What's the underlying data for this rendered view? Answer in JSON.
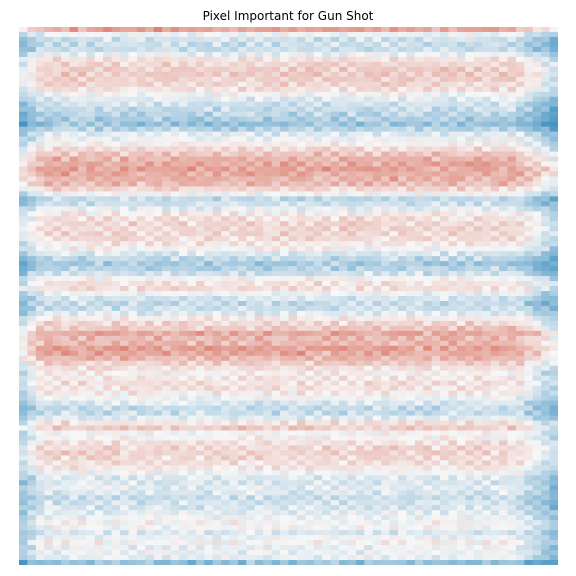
{
  "chart_data": {
    "type": "heatmap",
    "title": "Pixel Important for Gun Shot",
    "xlabel": "",
    "ylabel": "",
    "axes_visible": false,
    "colormap": "RdBu diverging (negative = blue, positive = red)",
    "value_range": [
      -1,
      1
    ],
    "column_pattern": {
      "description": "horizontally banded attribution map; within each row a checker-like texture, stronger blue along left and right edges",
      "edge_boost_left": 0.35,
      "edge_boost_right": 0.45
    },
    "rows": [
      {
        "position": 0.0,
        "value": 0.55
      },
      {
        "position": 0.005,
        "value": 0.1
      },
      {
        "position": 0.015,
        "value": -0.2
      },
      {
        "position": 0.035,
        "value": -0.3
      },
      {
        "position": 0.06,
        "value": 0.22
      },
      {
        "position": 0.085,
        "value": 0.3
      },
      {
        "position": 0.11,
        "value": 0.18
      },
      {
        "position": 0.135,
        "value": -0.2
      },
      {
        "position": 0.16,
        "value": -0.35
      },
      {
        "position": 0.18,
        "value": -0.55
      },
      {
        "position": 0.195,
        "value": -0.15
      },
      {
        "position": 0.215,
        "value": 0.05
      },
      {
        "position": 0.23,
        "value": 0.3
      },
      {
        "position": 0.245,
        "value": 0.45
      },
      {
        "position": 0.26,
        "value": 0.55
      },
      {
        "position": 0.275,
        "value": 0.5
      },
      {
        "position": 0.29,
        "value": 0.4
      },
      {
        "position": 0.305,
        "value": 0.1
      },
      {
        "position": 0.32,
        "value": -0.35
      },
      {
        "position": 0.335,
        "value": -0.1
      },
      {
        "position": 0.35,
        "value": 0.15
      },
      {
        "position": 0.37,
        "value": 0.22
      },
      {
        "position": 0.39,
        "value": 0.2
      },
      {
        "position": 0.41,
        "value": 0.05
      },
      {
        "position": 0.425,
        "value": -0.25
      },
      {
        "position": 0.44,
        "value": -0.45
      },
      {
        "position": 0.455,
        "value": -0.3
      },
      {
        "position": 0.47,
        "value": 0.1
      },
      {
        "position": 0.485,
        "value": 0.18
      },
      {
        "position": 0.5,
        "value": -0.15
      },
      {
        "position": 0.515,
        "value": -0.3
      },
      {
        "position": 0.53,
        "value": -0.2
      },
      {
        "position": 0.545,
        "value": 0.15
      },
      {
        "position": 0.56,
        "value": 0.3
      },
      {
        "position": 0.57,
        "value": 0.5
      },
      {
        "position": 0.585,
        "value": 0.35
      },
      {
        "position": 0.6,
        "value": 0.6
      },
      {
        "position": 0.615,
        "value": 0.45
      },
      {
        "position": 0.63,
        "value": 0.2
      },
      {
        "position": 0.645,
        "value": 0.05
      },
      {
        "position": 0.66,
        "value": 0.15
      },
      {
        "position": 0.68,
        "value": 0.12
      },
      {
        "position": 0.7,
        "value": -0.15
      },
      {
        "position": 0.715,
        "value": -0.35
      },
      {
        "position": 0.73,
        "value": -0.1
      },
      {
        "position": 0.745,
        "value": 0.35
      },
      {
        "position": 0.76,
        "value": -0.05
      },
      {
        "position": 0.775,
        "value": 0.15
      },
      {
        "position": 0.79,
        "value": 0.25
      },
      {
        "position": 0.805,
        "value": 0.2
      },
      {
        "position": 0.825,
        "value": 0.08
      },
      {
        "position": 0.845,
        "value": -0.2
      },
      {
        "position": 0.86,
        "value": -0.1
      },
      {
        "position": 0.88,
        "value": -0.25
      },
      {
        "position": 0.9,
        "value": -0.15
      },
      {
        "position": 0.915,
        "value": -0.05
      },
      {
        "position": 0.93,
        "value": 0.05
      },
      {
        "position": 0.945,
        "value": -0.15
      },
      {
        "position": 0.96,
        "value": 0.05
      },
      {
        "position": 0.975,
        "value": -0.1
      },
      {
        "position": 0.99,
        "value": -0.05
      },
      {
        "position": 1.0,
        "value": -0.55
      }
    ]
  }
}
